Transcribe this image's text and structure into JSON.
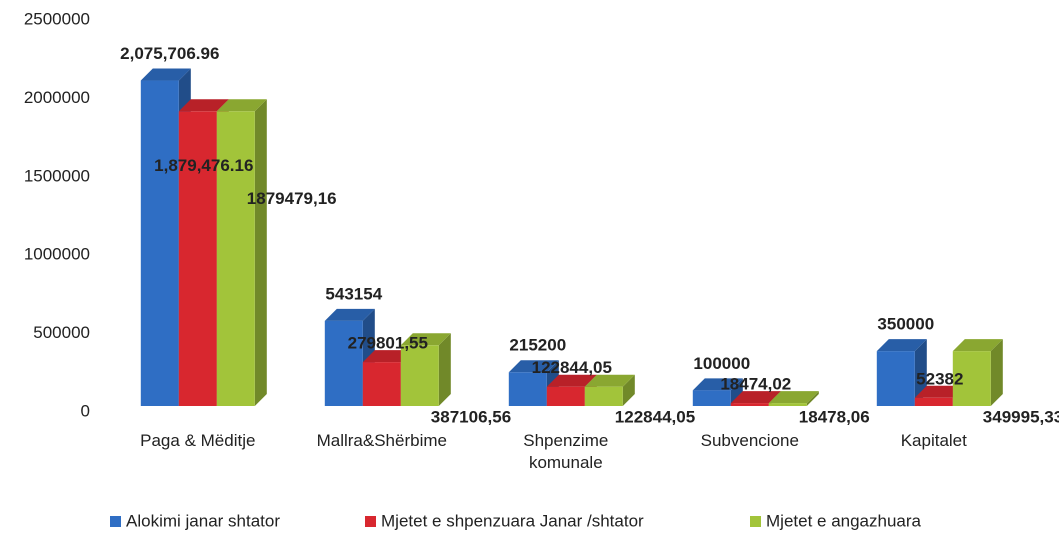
{
  "chart_data": {
    "type": "bar3d",
    "categories": [
      "Paga & Mëditje",
      "Mallra&Shërbime",
      "Shpenzime komunale",
      "Subvencione",
      "Kapitalet"
    ],
    "series": [
      {
        "name": "Alokimi janar shtator",
        "color": "#2f6ec4",
        "values": [
          2075706.96,
          543154,
          215200,
          100000,
          350000
        ],
        "value_labels": [
          "2,075,706.96",
          "543154",
          "215200",
          "100000",
          "350000"
        ]
      },
      {
        "name": "Mjetet e shpenzuara Janar /shtator",
        "color": "#d8272f",
        "values": [
          1879476.16,
          279801.55,
          122844.05,
          18474.02,
          52382
        ],
        "value_labels": [
          "1,879,476.16",
          "279801,55",
          "122844,05",
          "18474,02",
          "52382"
        ]
      },
      {
        "name": "Mjetet e angazhuara",
        "color": "#a2c43a",
        "values": [
          1879479.16,
          387106.56,
          122844.05,
          18478.06,
          349995.33
        ],
        "value_labels": [
          "1879479,16",
          "387106,56",
          "122844,05",
          "18478,06",
          "349995,33"
        ]
      }
    ],
    "ylim": [
      0,
      2500000
    ],
    "yticks": [
      0,
      500000,
      1000000,
      1500000,
      2000000,
      2500000
    ],
    "grid": false
  }
}
